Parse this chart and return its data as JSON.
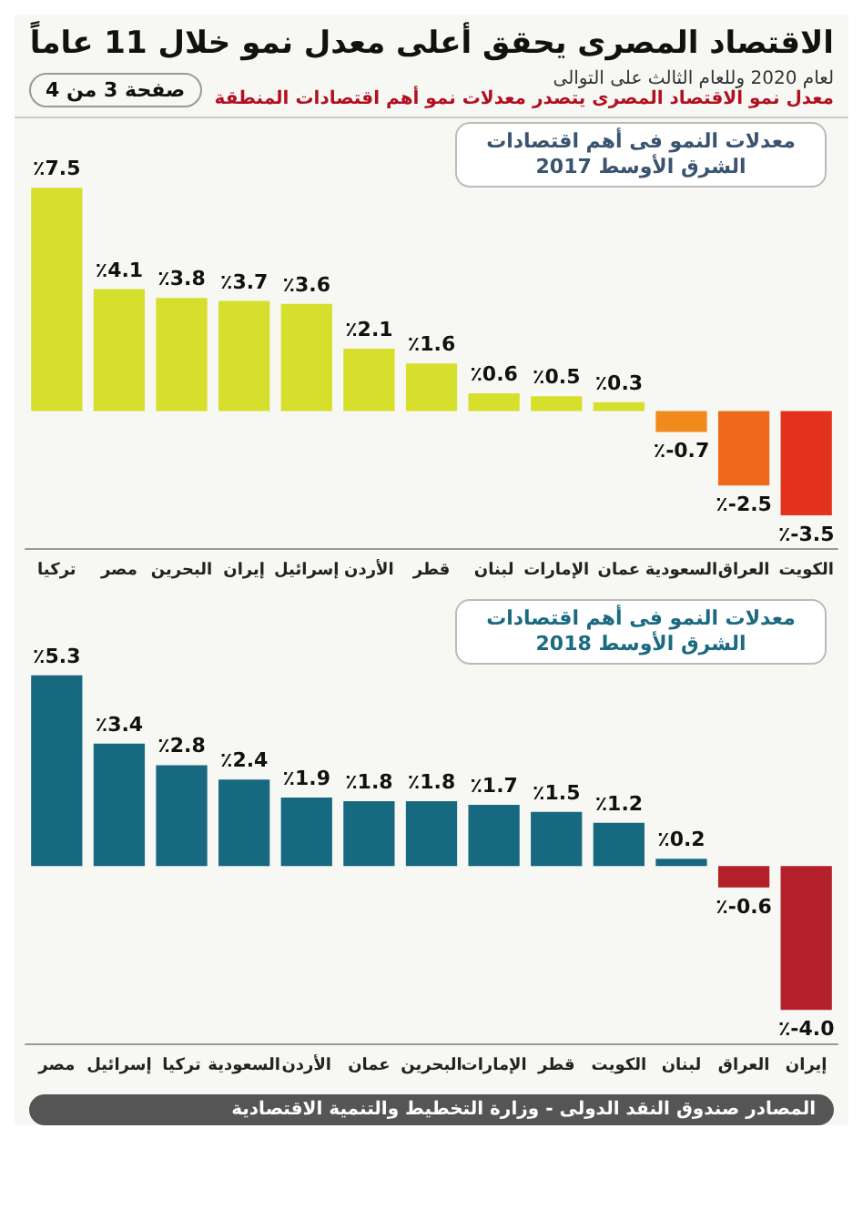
{
  "chart_data": [
    {
      "type": "bar",
      "title": "الاقتصاد المصرى يحقق أعلى معدل نمو خلال 11 عاماً",
      "subtitle": "معدل نمو الاقتصاد المصرى يتصدر معدلات نمو أهم اقتصادات المنطقة",
      "annotations": [
        "لعام 2020 وللعام الثالث على التوالى",
        "صفحة 3 من 4",
        "معدلات النمو فى أهم اقتصادات الشرق الأوسط 2017"
      ],
      "categories": [
        "تركيا",
        "مصر",
        "البحرين",
        "إيران",
        "إسرائيل",
        "الأردن",
        "قطر",
        "لبنان",
        "الإمارات",
        "عمان",
        "السعودية",
        "العراق",
        "الكويت"
      ],
      "values": [
        7.5,
        4.1,
        3.8,
        3.7,
        3.6,
        2.1,
        1.6,
        0.6,
        0.5,
        0.3,
        -0.7,
        -2.5,
        -3.5
      ],
      "value_labels": [
        "٪7.5",
        "٪4.1",
        "٪3.8",
        "٪3.7",
        "٪3.6",
        "٪2.1",
        "٪1.6",
        "٪0.6",
        "٪0.5",
        "٪0.3",
        "٪-0.7",
        "٪-2.5",
        "٪-3.5"
      ],
      "colors": [
        "#d6e02c",
        "#d6e02c",
        "#d6e02c",
        "#d6e02c",
        "#d6e02c",
        "#d6e02c",
        "#d6e02c",
        "#d6e02c",
        "#d6e02c",
        "#d6e02c",
        "#f08a1c",
        "#ee6a1a",
        "#e2321e"
      ],
      "tick_labels": "x"
    },
    {
      "type": "bar",
      "annotations": [
        "معدلات النمو فى أهم اقتصادات الشرق الأوسط 2018",
        "المصادر صندوق النقد الدولى - وزارة التخطيط والتنمية الاقتصادية"
      ],
      "categories": [
        "مصر",
        "إسرائيل",
        "تركيا",
        "السعودية",
        "الأردن",
        "عمان",
        "البحرين",
        "الإمارات",
        "قطر",
        "الكويت",
        "لبنان",
        "العراق",
        "إيران"
      ],
      "values": [
        5.3,
        3.4,
        2.8,
        2.4,
        1.9,
        1.8,
        1.8,
        1.7,
        1.5,
        1.2,
        0.2,
        -0.6,
        -4.0
      ],
      "value_labels": [
        "٪5.3",
        "٪3.4",
        "٪2.8",
        "٪2.4",
        "٪1.9",
        "٪1.8",
        "٪1.8",
        "٪1.7",
        "٪1.5",
        "٪1.2",
        "٪0.2",
        "٪-0.6",
        "٪-4.0"
      ],
      "colors": [
        "#17697f",
        "#17697f",
        "#17697f",
        "#17697f",
        "#17697f",
        "#17697f",
        "#17697f",
        "#17697f",
        "#17697f",
        "#17697f",
        "#17697f",
        "#b3202a",
        "#b3202a"
      ],
      "tick_labels": "x"
    }
  ]
}
